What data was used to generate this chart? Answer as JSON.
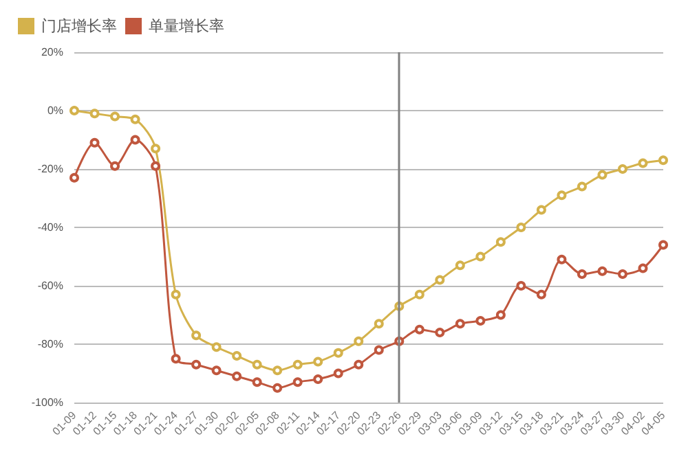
{
  "chart_data": {
    "type": "line",
    "categories": [
      "01-09",
      "01-12",
      "01-15",
      "01-18",
      "01-21",
      "01-24",
      "01-27",
      "01-30",
      "02-02",
      "02-05",
      "02-08",
      "02-11",
      "02-14",
      "02-17",
      "02-20",
      "02-23",
      "02-26",
      "02-29",
      "03-03",
      "03-06",
      "03-09",
      "03-12",
      "03-15",
      "03-18",
      "03-21",
      "03-24",
      "03-27",
      "03-30",
      "04-02",
      "04-05"
    ],
    "series": [
      {
        "name": "门店增长率",
        "color": "#d4b24c",
        "values": [
          0,
          -1,
          -2,
          -3,
          -13,
          -63,
          -77,
          -81,
          -84,
          -87,
          -89,
          -87,
          -86,
          -83,
          -79,
          -73,
          -67,
          -63,
          -58,
          -53,
          -50,
          -45,
          -40,
          -34,
          -29,
          -26,
          -22,
          -20,
          -18,
          -17
        ]
      },
      {
        "name": "单量增长率",
        "color": "#c0573e",
        "values": [
          -23,
          -11,
          -19,
          -10,
          -19,
          -85,
          -87,
          -89,
          -91,
          -93,
          -95,
          -93,
          -92,
          -90,
          -87,
          -82,
          -79,
          -75,
          -76,
          -73,
          -72,
          -70,
          -60,
          -63,
          -51,
          -56,
          -55,
          -56,
          -54,
          -46
        ]
      }
    ],
    "ylim": [
      -100,
      20
    ],
    "yticks": [
      {
        "value": -100,
        "label": "-100%"
      },
      {
        "value": -80,
        "label": "-80%"
      },
      {
        "value": -60,
        "label": "-60%"
      },
      {
        "value": -40,
        "label": "-40%"
      },
      {
        "value": -20,
        "label": "-20%"
      },
      {
        "value": 0,
        "label": "0%"
      },
      {
        "value": 20,
        "label": "20%"
      }
    ],
    "ref_lines": [
      {
        "axis": "x",
        "value": "02-26",
        "color": "#808080"
      }
    ],
    "grid": "y",
    "legend": "top left",
    "marker": "circle",
    "line_style": "solid"
  }
}
